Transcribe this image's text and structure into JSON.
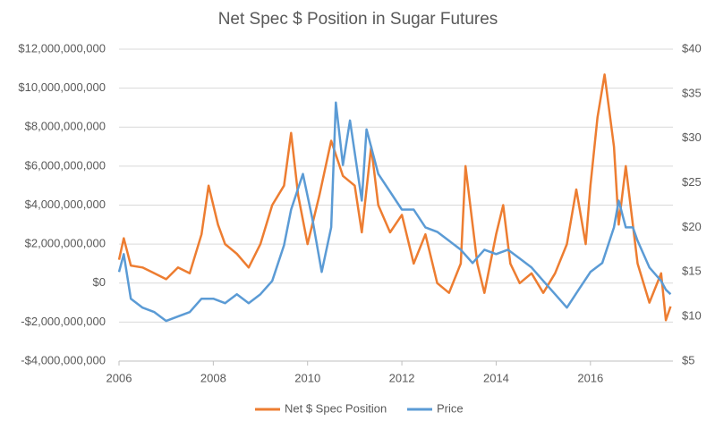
{
  "chart_data": {
    "type": "line",
    "title": "Net Spec $ Position in Sugar Futures",
    "xlim": [
      2006,
      2017.75
    ],
    "xticks": [
      2006,
      2008,
      2010,
      2012,
      2014,
      2016
    ],
    "ylim": [
      -4000000000,
      12000000000
    ],
    "yticks": [
      {
        "value": -4000000000,
        "label": "-$4,000,000,000"
      },
      {
        "value": -2000000000,
        "label": "-$2,000,000,000"
      },
      {
        "value": 0,
        "label": "$0"
      },
      {
        "value": 2000000000,
        "label": "$2,000,000,000"
      },
      {
        "value": 4000000000,
        "label": "$4,000,000,000"
      },
      {
        "value": 6000000000,
        "label": "$6,000,000,000"
      },
      {
        "value": 8000000000,
        "label": "$8,000,000,000"
      },
      {
        "value": 10000000000,
        "label": "$10,000,000,000"
      },
      {
        "value": 12000000000,
        "label": "$12,000,000,000"
      }
    ],
    "y2lim": [
      5,
      40
    ],
    "y2ticks": [
      {
        "value": 5,
        "label": "$5"
      },
      {
        "value": 10,
        "label": "$10"
      },
      {
        "value": 15,
        "label": "$15"
      },
      {
        "value": 20,
        "label": "$20"
      },
      {
        "value": 25,
        "label": "$25"
      },
      {
        "value": 30,
        "label": "$30"
      },
      {
        "value": 35,
        "label": "$35"
      },
      {
        "value": 40,
        "label": "$40"
      }
    ],
    "grid": true,
    "legend": "bottom",
    "series": [
      {
        "name": "Net $ Spec Position",
        "color": "#ed7d31",
        "x": [
          2006.0,
          2006.1,
          2006.25,
          2006.5,
          2006.75,
          2007.0,
          2007.25,
          2007.5,
          2007.75,
          2007.9,
          2008.1,
          2008.25,
          2008.5,
          2008.75,
          2009.0,
          2009.25,
          2009.5,
          2009.65,
          2009.8,
          2010.0,
          2010.25,
          2010.5,
          2010.75,
          2011.0,
          2011.15,
          2011.35,
          2011.5,
          2011.75,
          2012.0,
          2012.25,
          2012.5,
          2012.75,
          2013.0,
          2013.25,
          2013.35,
          2013.6,
          2013.75,
          2014.0,
          2014.15,
          2014.3,
          2014.5,
          2014.75,
          2015.0,
          2015.25,
          2015.5,
          2015.7,
          2015.9,
          2016.0,
          2016.15,
          2016.3,
          2016.5,
          2016.6,
          2016.75,
          2016.9,
          2017.0,
          2017.25,
          2017.5,
          2017.6,
          2017.7
        ],
        "values": [
          1200000000,
          2300000000,
          900000000,
          800000000,
          500000000,
          200000000,
          800000000,
          500000000,
          2500000000,
          5000000000,
          3000000000,
          2000000000,
          1500000000,
          800000000,
          2000000000,
          4000000000,
          5000000000,
          7700000000,
          4500000000,
          2000000000,
          4500000000,
          7300000000,
          5500000000,
          5000000000,
          2600000000,
          7000000000,
          4000000000,
          2600000000,
          3500000000,
          1000000000,
          2500000000,
          0,
          -500000000,
          1000000000,
          6000000000,
          1000000000,
          -500000000,
          2500000000,
          4000000000,
          1000000000,
          0,
          500000000,
          -500000000,
          500000000,
          2000000000,
          4800000000,
          2000000000,
          5000000000,
          8500000000,
          10700000000,
          7000000000,
          3000000000,
          6000000000,
          3000000000,
          1000000000,
          -1000000000,
          500000000,
          -1900000000,
          -1200000000
        ]
      },
      {
        "name": "Price",
        "color": "#5b9bd5",
        "axis": "y2",
        "x": [
          2006.0,
          2006.1,
          2006.25,
          2006.5,
          2006.75,
          2007.0,
          2007.25,
          2007.5,
          2007.75,
          2008.0,
          2008.25,
          2008.5,
          2008.75,
          2009.0,
          2009.25,
          2009.5,
          2009.65,
          2009.9,
          2010.1,
          2010.3,
          2010.5,
          2010.6,
          2010.75,
          2010.9,
          2011.15,
          2011.25,
          2011.5,
          2011.75,
          2012.0,
          2012.25,
          2012.5,
          2012.75,
          2013.0,
          2013.25,
          2013.5,
          2013.75,
          2014.0,
          2014.25,
          2014.5,
          2014.75,
          2015.0,
          2015.25,
          2015.5,
          2015.75,
          2016.0,
          2016.25,
          2016.5,
          2016.6,
          2016.75,
          2016.9,
          2017.0,
          2017.25,
          2017.5,
          2017.6,
          2017.7
        ],
        "values": [
          15,
          17,
          12,
          11,
          10.5,
          9.5,
          10,
          10.5,
          12,
          12,
          11.5,
          12.5,
          11.5,
          12.5,
          14,
          18,
          22,
          26,
          21,
          15,
          20,
          34,
          27,
          32,
          23,
          31,
          26,
          24,
          22,
          22,
          20,
          19.5,
          18.5,
          17.5,
          16,
          17.5,
          17,
          17.5,
          16.5,
          15.5,
          14,
          12.5,
          11,
          13,
          15,
          16,
          20,
          23,
          20,
          20,
          18.5,
          15.5,
          14,
          13,
          12.5
        ]
      }
    ]
  }
}
